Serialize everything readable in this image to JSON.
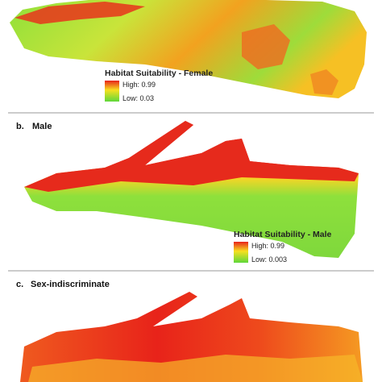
{
  "panels": [
    {
      "legend": {
        "title": "Habitat Suitability - Female",
        "high": "High: 0.99",
        "low": "Low: 0.03"
      }
    },
    {
      "letter": "b.",
      "name": "Male",
      "legend": {
        "title": "Habitat Suitability - Male",
        "high": "High: 0.99",
        "low": "Low: 0.003"
      }
    },
    {
      "letter": "c.",
      "name": "Sex-indiscriminate"
    }
  ]
}
